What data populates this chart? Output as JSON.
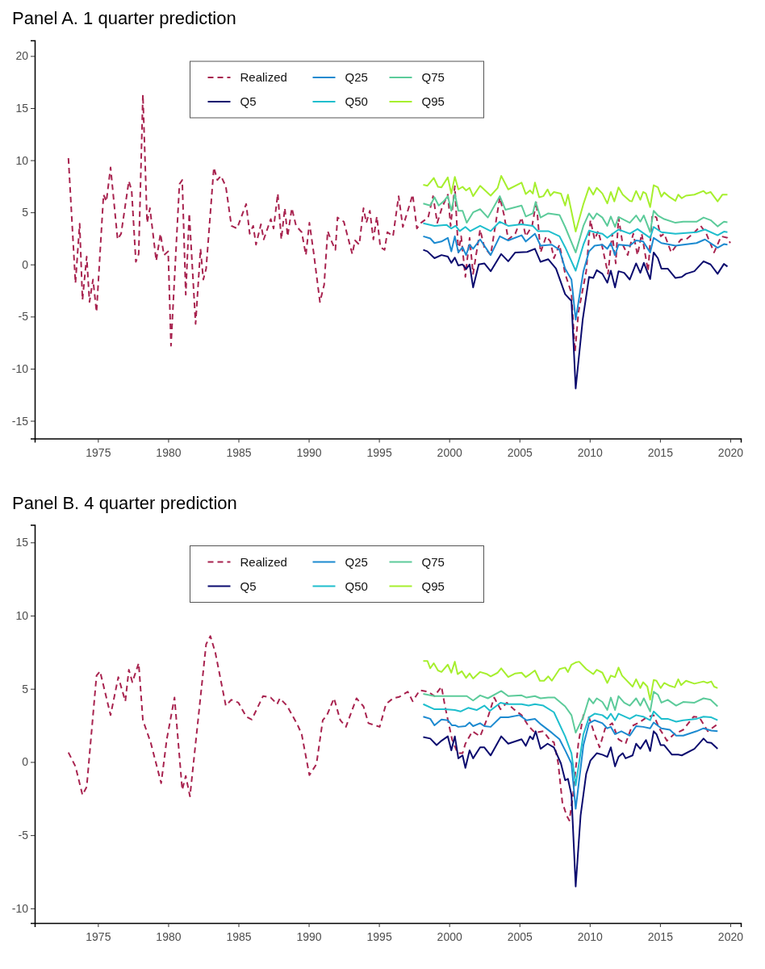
{
  "chart_data": [
    {
      "type": "line",
      "title": "Panel A. 1 quarter prediction",
      "xlim": [
        1970.5,
        2020.75
      ],
      "xticks": [
        1975,
        1980,
        1985,
        1990,
        1995,
        2000,
        2005,
        2010,
        2015,
        2020
      ],
      "ylim": [
        -16.7,
        21.5
      ],
      "yticks": [
        -15,
        -10,
        -5,
        0,
        5,
        10,
        15,
        20
      ],
      "grid": false,
      "legend": "top",
      "series": [
        {
          "name": "Realized",
          "color": "#a8234f",
          "line_style": "dashed",
          "x": [
            1972.9,
            1973.4,
            1973.7,
            1973.9,
            1974.2,
            1974.4,
            1974.65,
            1974.9,
            1975.4,
            1975.6,
            1975.9,
            1976.4,
            1976.65,
            1977.2,
            1977.4,
            1977.7,
            1977.9,
            1978.2,
            1978.5,
            1978.7,
            1979.15,
            1979.45,
            1979.7,
            1980.0,
            1980.2,
            1980.8,
            1981.0,
            1981.25,
            1981.5,
            1981.95,
            1982.3,
            1982.5,
            1982.7,
            1983.25,
            1983.5,
            1983.75,
            1984.1,
            1984.5,
            1984.9,
            1985.55,
            1985.8,
            1986.05,
            1986.25,
            1986.6,
            1986.8,
            1987.3,
            1987.5,
            1987.8,
            1988.05,
            1988.3,
            1988.5,
            1988.8,
            1989.1,
            1989.5,
            1989.8,
            1990.05,
            1990.35,
            1990.8,
            1991.1,
            1991.35,
            1991.6,
            1991.9,
            1992.05,
            1992.5,
            1993.1,
            1993.3,
            1993.6,
            1993.9,
            1994.1,
            1994.35,
            1994.6,
            1994.85,
            1995.1,
            1995.4,
            1995.6,
            1996.0,
            1996.4,
            1996.7,
            1997.4,
            1997.7,
            1998.0,
            1998.5,
            1998.85,
            1999.15,
            1999.5,
            1999.9,
            2000.1,
            2000.4,
            2000.65,
            2000.85,
            2001.15,
            2001.45,
            2001.7,
            2002.2,
            2002.5,
            2002.95,
            2003.6,
            2003.9,
            2004.2,
            2004.7,
            2005.15,
            2005.45,
            2005.9,
            2006.2,
            2006.5,
            2006.9,
            2007.2,
            2007.45,
            2007.85,
            2008.25,
            2008.7,
            2008.95,
            2009.2,
            2009.75,
            2010.05,
            2010.35,
            2010.6,
            2010.9,
            2011.3,
            2011.6,
            2011.85,
            2012.05,
            2012.35,
            2012.7,
            2013.1,
            2013.4,
            2013.7,
            2014.15,
            2014.45,
            2014.75,
            2015.05,
            2015.3,
            2015.8,
            2016.2,
            2016.5,
            2016.85,
            2017.35,
            2017.9,
            2018.3,
            2018.85,
            2019.35,
            2019.8,
            2020.0
          ],
          "values": [
            10.2,
            -1.8,
            3.9,
            -3.4,
            0.75,
            -3.6,
            -1.45,
            -4.55,
            6.7,
            6.05,
            9.3,
            2.4,
            2.95,
            8.0,
            7.1,
            0.25,
            1.0,
            16.3,
            4.0,
            5.4,
            0.35,
            2.95,
            0.9,
            1.25,
            -7.8,
            7.7,
            8.1,
            -2.9,
            4.9,
            -5.7,
            1.5,
            -1.45,
            -0.4,
            9.3,
            8.1,
            8.5,
            7.5,
            3.7,
            3.45,
            5.8,
            2.95,
            3.7,
            1.9,
            3.85,
            2.4,
            4.35,
            3.45,
            6.8,
            2.4,
            5.4,
            2.7,
            5.4,
            3.7,
            3.1,
            0.9,
            4.0,
            1.15,
            -3.6,
            -1.95,
            3.2,
            2.3,
            1.4,
            4.5,
            4.1,
            1.0,
            2.3,
            1.9,
            5.4,
            4.0,
            5.15,
            2.4,
            4.6,
            1.65,
            1.4,
            3.1,
            2.7,
            6.55,
            3.6,
            6.7,
            3.45,
            4.0,
            4.5,
            6.55,
            4.0,
            5.5,
            6.7,
            3.7,
            7.5,
            1.15,
            2.7,
            -1.2,
            2.55,
            -0.9,
            3.35,
            1.65,
            0.9,
            6.45,
            4.75,
            2.4,
            2.95,
            4.5,
            2.7,
            3.7,
            6.05,
            1.15,
            2.7,
            2.2,
            0.6,
            1.9,
            -0.9,
            -2.75,
            -8.4,
            -4.55,
            -0.65,
            4.25,
            2.4,
            3.2,
            1.65,
            -0.9,
            2.95,
            0.1,
            4.5,
            1.9,
            0.9,
            2.95,
            0.9,
            2.95,
            -0.65,
            4.75,
            4.5,
            2.7,
            2.95,
            1.15,
            1.9,
            2.4,
            2.4,
            2.95,
            3.7,
            2.95,
            1.15,
            2.7,
            2.55,
            2.05
          ]
        },
        {
          "name": "Q5",
          "color": "#0a0a6e",
          "line_style": "solid",
          "x": [
            1998.15,
            1998.45,
            1998.95,
            1999.45,
            1999.9,
            2000.15,
            2000.4,
            2000.65,
            2000.95,
            2001.2,
            2001.45,
            2001.7,
            2002.1,
            2002.5,
            2002.95,
            2003.7,
            2004.2,
            2004.7,
            2005.55,
            2006.1,
            2006.5,
            2007.05,
            2007.6,
            2008.25,
            2008.7,
            2009.0,
            2009.5,
            2009.95,
            2010.25,
            2010.5,
            2010.9,
            2011.25,
            2011.5,
            2011.8,
            2012.05,
            2012.45,
            2012.85,
            2013.3,
            2013.6,
            2013.85,
            2014.3,
            2014.55,
            2014.85,
            2015.1,
            2015.55,
            2016.1,
            2016.55,
            2016.85,
            2017.45,
            2018.1,
            2018.6,
            2019.1,
            2019.55,
            2019.8
          ],
          "values": [
            1.4,
            1.25,
            0.6,
            0.9,
            0.75,
            0.15,
            0.65,
            -0.1,
            0.0,
            -0.45,
            0.0,
            -2.2,
            0.0,
            0.1,
            -0.65,
            1.0,
            0.3,
            1.15,
            1.2,
            1.5,
            0.25,
            0.5,
            -0.4,
            -2.85,
            -3.5,
            -11.9,
            -5.3,
            -1.2,
            -1.3,
            -0.55,
            -0.9,
            -1.75,
            -0.6,
            -2.2,
            -0.65,
            -0.8,
            -1.45,
            0.1,
            -0.8,
            0.15,
            -1.4,
            1.15,
            0.6,
            -0.4,
            -0.4,
            -1.3,
            -1.2,
            -0.9,
            -0.65,
            0.3,
            0.0,
            -0.9,
            0.05,
            -0.2
          ]
        },
        {
          "name": "Q25",
          "color": "#1c8ad0",
          "line_style": "solid",
          "x": [
            1998.15,
            1998.65,
            1998.95,
            1999.45,
            1999.9,
            2000.15,
            2000.4,
            2000.65,
            2000.95,
            2001.2,
            2001.45,
            2001.7,
            2002.2,
            2002.95,
            2003.6,
            2004.2,
            2005.15,
            2005.45,
            2006.1,
            2006.5,
            2007.3,
            2007.85,
            2008.25,
            2008.7,
            2009.0,
            2009.55,
            2009.95,
            2010.35,
            2010.9,
            2011.25,
            2011.5,
            2011.8,
            2012.05,
            2012.85,
            2013.3,
            2013.8,
            2014.3,
            2014.55,
            2015.1,
            2016.1,
            2017.6,
            2018.2,
            2019.1,
            2019.55,
            2019.8
          ],
          "values": [
            2.7,
            2.5,
            2.05,
            2.2,
            2.55,
            1.25,
            2.7,
            1.15,
            1.65,
            0.9,
            1.9,
            1.5,
            2.4,
            0.9,
            2.7,
            2.3,
            2.8,
            2.2,
            2.95,
            1.8,
            1.9,
            1.4,
            -0.4,
            -1.45,
            -5.3,
            -0.65,
            1.25,
            1.8,
            1.9,
            1.5,
            2.05,
            0.9,
            1.9,
            1.8,
            2.3,
            2.2,
            1.15,
            2.55,
            2.05,
            1.8,
            2.05,
            2.4,
            1.6,
            1.95,
            1.9
          ]
        },
        {
          "name": "Q50",
          "color": "#1fbecd",
          "line_style": "solid",
          "x": [
            1998.15,
            1998.95,
            1999.8,
            2000.15,
            2000.45,
            2000.75,
            2001.15,
            2001.5,
            2002.2,
            2002.95,
            2003.6,
            2004.2,
            2005.15,
            2005.95,
            2006.3,
            2007.05,
            2007.85,
            2008.25,
            2009.0,
            2009.55,
            2009.95,
            2010.35,
            2010.9,
            2011.25,
            2012.05,
            2012.85,
            2013.4,
            2014.3,
            2014.55,
            2015.1,
            2016.1,
            2017.6,
            2018.2,
            2019.1,
            2019.55,
            2019.8
          ],
          "values": [
            3.95,
            3.7,
            3.8,
            3.45,
            3.7,
            3.2,
            3.6,
            3.2,
            3.7,
            3.2,
            4.1,
            3.7,
            3.85,
            3.7,
            3.2,
            3.2,
            2.7,
            1.65,
            -0.6,
            1.9,
            3.25,
            3.1,
            2.95,
            2.55,
            3.35,
            2.95,
            3.4,
            2.55,
            3.6,
            3.1,
            2.95,
            3.1,
            3.35,
            2.8,
            3.15,
            3.1
          ]
        },
        {
          "name": "Q75",
          "color": "#5ccb9a",
          "line_style": "solid",
          "x": [
            1998.15,
            1998.65,
            1998.95,
            1999.25,
            1999.6,
            1999.9,
            2000.15,
            2000.4,
            2000.65,
            2000.95,
            2001.25,
            2001.7,
            2002.2,
            2002.75,
            2003.6,
            2004.0,
            2005.15,
            2005.45,
            2005.95,
            2006.15,
            2006.5,
            2007.05,
            2007.85,
            2008.25,
            2009.0,
            2009.55,
            2009.95,
            2010.25,
            2010.5,
            2010.9,
            2011.25,
            2011.5,
            2011.8,
            2012.05,
            2012.35,
            2012.85,
            2013.3,
            2013.6,
            2013.85,
            2014.3,
            2014.55,
            2014.85,
            2015.3,
            2016.1,
            2016.65,
            2017.6,
            2018.1,
            2018.6,
            2019.1,
            2019.55,
            2019.8
          ],
          "values": [
            5.85,
            5.65,
            6.45,
            5.65,
            6.05,
            6.55,
            5.15,
            6.75,
            5.15,
            5.15,
            4.0,
            5.0,
            5.3,
            4.5,
            6.55,
            5.25,
            5.65,
            4.6,
            4.9,
            6.0,
            4.5,
            4.9,
            4.75,
            3.6,
            1.15,
            3.7,
            4.9,
            4.35,
            4.9,
            4.5,
            3.7,
            4.6,
            3.6,
            4.55,
            4.35,
            4.0,
            4.7,
            4.1,
            4.7,
            3.1,
            5.15,
            4.7,
            4.35,
            4.0,
            4.1,
            4.1,
            4.5,
            4.25,
            3.65,
            4.1,
            4.05
          ]
        },
        {
          "name": "Q95",
          "color": "#a6ef2e",
          "line_style": "solid",
          "x": [
            1998.15,
            1998.45,
            1998.9,
            1999.2,
            1999.45,
            1999.9,
            2000.15,
            2000.4,
            2000.65,
            2000.95,
            2001.2,
            2001.45,
            2001.7,
            2002.2,
            2002.95,
            2003.45,
            2003.7,
            2004.2,
            2005.15,
            2005.45,
            2005.75,
            2005.95,
            2006.1,
            2006.4,
            2006.7,
            2007.0,
            2007.2,
            2007.45,
            2007.95,
            2008.25,
            2008.45,
            2009.0,
            2009.55,
            2009.95,
            2010.25,
            2010.5,
            2010.9,
            2011.25,
            2011.5,
            2011.75,
            2012.05,
            2012.35,
            2012.85,
            2013.0,
            2013.3,
            2013.6,
            2013.8,
            2014.0,
            2014.3,
            2014.55,
            2014.85,
            2015.1,
            2015.3,
            2015.7,
            2016.1,
            2016.3,
            2016.55,
            2016.85,
            2017.45,
            2018.1,
            2018.3,
            2018.6,
            2019.1,
            2019.45,
            2019.8
          ],
          "values": [
            7.65,
            7.55,
            8.3,
            7.45,
            7.4,
            8.35,
            6.8,
            8.4,
            7.2,
            7.45,
            7.1,
            7.35,
            6.55,
            7.55,
            6.6,
            7.35,
            8.5,
            7.2,
            7.85,
            6.75,
            7.1,
            6.8,
            7.85,
            6.45,
            6.55,
            7.2,
            6.6,
            6.95,
            6.8,
            5.65,
            6.7,
            3.15,
            5.8,
            7.4,
            6.7,
            7.35,
            6.8,
            5.85,
            6.95,
            6.05,
            7.4,
            6.7,
            6.1,
            6.05,
            7.05,
            6.2,
            6.95,
            6.8,
            5.5,
            7.6,
            7.4,
            6.5,
            6.9,
            6.45,
            6.1,
            6.7,
            6.35,
            6.6,
            6.7,
            7.05,
            6.8,
            6.95,
            6.05,
            6.7,
            6.7
          ]
        }
      ]
    },
    {
      "type": "line",
      "title": "Panel B. 4 quarter prediction",
      "xlim": [
        1970.5,
        2020.75
      ],
      "xticks": [
        1975,
        1980,
        1985,
        1990,
        1995,
        2000,
        2005,
        2010,
        2015,
        2020
      ],
      "ylim": [
        -11,
        16.2
      ],
      "yticks": [
        -10,
        -5,
        0,
        5,
        10,
        15
      ],
      "grid": false,
      "legend": "top",
      "series": [
        {
          "name": "Realized",
          "color": "#a8234f",
          "line_style": "dashed",
          "x": [
            1972.9,
            1973.4,
            1973.9,
            1974.2,
            1974.9,
            1975.15,
            1975.9,
            1976.45,
            1976.95,
            1977.2,
            1977.45,
            1977.9,
            1978.2,
            1978.75,
            1979.5,
            1979.9,
            1980.45,
            1981.0,
            1981.25,
            1981.55,
            1982.7,
            1983.0,
            1983.35,
            1984.1,
            1984.5,
            1985.0,
            1985.55,
            1985.95,
            1986.75,
            1987.3,
            1987.75,
            1987.95,
            1988.45,
            1989.2,
            1989.5,
            1990.05,
            1990.55,
            1991.0,
            1991.3,
            1991.8,
            1992.25,
            1992.65,
            1993.4,
            1993.9,
            1994.25,
            1995.05,
            1995.5,
            1996.0,
            1996.45,
            1997.05,
            1997.4,
            1997.9,
            1998.5,
            1998.95,
            1999.45,
            1999.7,
            2000.2,
            2000.6,
            2000.95,
            2001.15,
            2001.65,
            2002.2,
            2002.8,
            2003.2,
            2003.65,
            2004.1,
            2004.6,
            2005.15,
            2005.65,
            2006.1,
            2006.7,
            2007.2,
            2007.45,
            2007.75,
            2008.05,
            2008.35,
            2008.55,
            2008.8,
            2009.2,
            2009.55,
            2009.95,
            2010.35,
            2010.7,
            2011.1,
            2011.6,
            2012.05,
            2012.55,
            2013.0,
            2013.6,
            2014.05,
            2014.55,
            2014.95,
            2015.5,
            2016.0,
            2016.65,
            2017.4,
            2017.8,
            2018.4,
            2019.05
          ],
          "values": [
            0.65,
            -0.3,
            -2.25,
            -1.7,
            5.9,
            6.2,
            3.2,
            5.8,
            4.15,
            6.3,
            5.45,
            6.75,
            2.85,
            1.35,
            -1.45,
            1.55,
            4.4,
            -1.9,
            -0.95,
            -2.35,
            8.05,
            8.6,
            7.5,
            3.85,
            4.25,
            4.05,
            3.1,
            2.9,
            4.5,
            4.4,
            3.95,
            4.35,
            3.85,
            2.55,
            1.9,
            -0.9,
            -0.15,
            2.85,
            3.2,
            4.35,
            2.85,
            2.4,
            4.35,
            3.8,
            2.65,
            2.4,
            3.95,
            4.35,
            4.45,
            4.8,
            4.15,
            4.9,
            4.8,
            4.5,
            5.15,
            3.8,
            1.55,
            0.6,
            0.6,
            1.25,
            2.1,
            1.75,
            3.2,
            4.4,
            3.6,
            4.05,
            3.6,
            3.2,
            2.45,
            2.0,
            2.1,
            1.45,
            1.35,
            -0.05,
            -2.75,
            -3.65,
            -4.0,
            -2.35,
            1.35,
            3.2,
            3.05,
            1.9,
            1.0,
            2.3,
            2.65,
            1.55,
            1.25,
            2.45,
            2.75,
            3.05,
            3.2,
            2.3,
            1.45,
            1.9,
            2.2,
            3.1,
            3.05,
            2.1,
            2.55
          ]
        },
        {
          "name": "Q5",
          "color": "#0a0a6e",
          "line_style": "solid",
          "x": [
            1998.15,
            1998.65,
            1999.1,
            1999.45,
            1999.9,
            2000.15,
            2000.4,
            2000.65,
            2000.95,
            2001.15,
            2001.45,
            2001.7,
            2002.2,
            2002.5,
            2002.95,
            2003.7,
            2004.2,
            2005.15,
            2005.45,
            2005.75,
            2005.95,
            2006.15,
            2006.5,
            2007.0,
            2007.45,
            2007.95,
            2008.25,
            2008.45,
            2008.7,
            2009.0,
            2009.35,
            2009.75,
            2010.05,
            2010.5,
            2010.9,
            2011.25,
            2011.5,
            2011.8,
            2012.05,
            2012.35,
            2012.55,
            2013.05,
            2013.3,
            2013.6,
            2014.0,
            2014.3,
            2014.55,
            2014.75,
            2015.05,
            2015.3,
            2015.85,
            2016.3,
            2016.55,
            2017.45,
            2018.1,
            2018.35,
            2018.65,
            2019.1
          ],
          "values": [
            1.7,
            1.6,
            1.15,
            1.45,
            1.75,
            0.8,
            1.75,
            0.25,
            0.45,
            -0.4,
            0.8,
            0.25,
            1.0,
            1.0,
            0.45,
            1.75,
            1.25,
            1.55,
            1.1,
            1.75,
            1.55,
            2.1,
            0.9,
            1.25,
            1.0,
            -0.1,
            -1.25,
            -1.15,
            -2.25,
            -8.5,
            -3.65,
            -0.8,
            0.1,
            0.6,
            0.5,
            0.35,
            1.0,
            -0.3,
            0.35,
            0.6,
            0.25,
            0.45,
            1.25,
            0.9,
            1.5,
            0.75,
            2.1,
            1.9,
            1.15,
            1.15,
            0.5,
            0.5,
            0.45,
            0.9,
            1.6,
            1.35,
            1.3,
            0.9
          ]
        },
        {
          "name": "Q25",
          "color": "#1c8ad0",
          "line_style": "solid",
          "x": [
            1998.15,
            1998.65,
            1998.95,
            1999.45,
            1999.9,
            2000.2,
            2000.45,
            2000.65,
            2001.15,
            2001.45,
            2001.7,
            2002.2,
            2002.5,
            2002.95,
            2003.65,
            2004.2,
            2005.0,
            2005.5,
            2006.1,
            2006.55,
            2007.3,
            2007.85,
            2008.25,
            2008.7,
            2009.0,
            2009.55,
            2009.95,
            2010.35,
            2010.9,
            2011.25,
            2011.5,
            2011.8,
            2012.25,
            2012.85,
            2013.3,
            2013.8,
            2014.3,
            2014.55,
            2015.1,
            2015.7,
            2016.15,
            2016.65,
            2017.6,
            2018.1,
            2018.65,
            2019.1
          ],
          "values": [
            3.1,
            2.95,
            2.5,
            2.9,
            2.85,
            2.5,
            2.5,
            2.4,
            2.45,
            2.7,
            2.45,
            2.65,
            2.45,
            2.4,
            3.05,
            3.05,
            3.2,
            2.85,
            2.95,
            2.55,
            2.0,
            1.55,
            0.8,
            -0.1,
            -3.2,
            1.15,
            2.65,
            2.85,
            2.65,
            2.3,
            2.4,
            1.9,
            2.1,
            1.8,
            2.45,
            2.4,
            2.3,
            2.7,
            2.3,
            2.2,
            1.8,
            1.8,
            2.1,
            2.3,
            2.15,
            2.1
          ]
        },
        {
          "name": "Q50",
          "color": "#1fbecd",
          "line_style": "solid",
          "x": [
            1998.15,
            1998.95,
            1999.7,
            2000.4,
            2000.8,
            2001.35,
            2001.95,
            2002.5,
            2002.9,
            2003.65,
            2004.1,
            2005.15,
            2005.65,
            2006.1,
            2006.7,
            2007.45,
            2008.25,
            2008.7,
            2009.0,
            2009.55,
            2009.95,
            2010.35,
            2010.9,
            2011.25,
            2011.5,
            2011.8,
            2012.05,
            2012.85,
            2013.3,
            2013.8,
            2014.3,
            2014.55,
            2015.1,
            2015.55,
            2016.15,
            2016.65,
            2017.6,
            2018.1,
            2018.65,
            2019.1
          ],
          "values": [
            3.95,
            3.6,
            3.6,
            3.55,
            3.45,
            3.7,
            3.55,
            3.85,
            3.5,
            4.05,
            3.95,
            3.95,
            3.85,
            3.95,
            3.85,
            3.4,
            1.75,
            0.6,
            -1.6,
            1.9,
            3.05,
            3.3,
            3.2,
            2.95,
            3.3,
            2.85,
            3.3,
            2.95,
            3.2,
            3.1,
            2.85,
            3.45,
            2.95,
            2.95,
            2.75,
            2.85,
            2.95,
            3.1,
            3.05,
            2.85
          ]
        },
        {
          "name": "Q75",
          "color": "#5ccb9a",
          "line_style": "solid",
          "x": [
            1998.15,
            1998.95,
            1999.7,
            2000.8,
            2001.25,
            2001.7,
            2002.2,
            2002.75,
            2003.7,
            2004.2,
            2005.15,
            2005.5,
            2006.1,
            2006.5,
            2007.05,
            2007.5,
            2008.25,
            2008.7,
            2009.0,
            2009.55,
            2009.95,
            2010.25,
            2010.5,
            2010.9,
            2011.25,
            2011.5,
            2011.8,
            2012.05,
            2012.45,
            2012.85,
            2013.3,
            2013.6,
            2013.85,
            2014.3,
            2014.55,
            2014.85,
            2015.1,
            2015.55,
            2016.15,
            2016.65,
            2017.45,
            2018.1,
            2018.6,
            2019.1
          ],
          "values": [
            4.65,
            4.5,
            4.5,
            4.5,
            4.5,
            4.2,
            4.55,
            4.35,
            4.85,
            4.5,
            4.55,
            4.4,
            4.5,
            4.35,
            4.4,
            4.4,
            3.8,
            3.2,
            2.0,
            3.1,
            4.35,
            4.0,
            4.35,
            4.1,
            3.55,
            4.4,
            3.55,
            4.5,
            4.05,
            3.85,
            4.35,
            3.85,
            4.35,
            3.45,
            4.8,
            4.6,
            4.05,
            4.25,
            3.85,
            4.1,
            4.05,
            4.35,
            4.25,
            3.8
          ]
        },
        {
          "name": "Q95",
          "color": "#a6ef2e",
          "line_style": "solid",
          "x": [
            1998.15,
            1998.45,
            1998.65,
            1998.9,
            1999.2,
            1999.45,
            1999.9,
            2000.15,
            2000.4,
            2000.6,
            2000.9,
            2001.2,
            2001.45,
            2001.7,
            2002.2,
            2002.7,
            2002.95,
            2003.45,
            2003.7,
            2004.2,
            2004.7,
            2005.15,
            2005.45,
            2005.75,
            2006.1,
            2006.45,
            2006.75,
            2007.05,
            2007.3,
            2007.85,
            2008.25,
            2008.45,
            2008.7,
            2009.0,
            2009.25,
            2009.75,
            2010.25,
            2010.5,
            2010.9,
            2011.25,
            2011.5,
            2011.8,
            2012.05,
            2012.3,
            2013.05,
            2013.3,
            2013.6,
            2013.8,
            2014.1,
            2014.3,
            2014.55,
            2014.75,
            2015.05,
            2015.3,
            2015.7,
            2016.05,
            2016.3,
            2016.5,
            2016.85,
            2017.45,
            2018.1,
            2018.35,
            2018.65,
            2018.85,
            2019.1
          ],
          "values": [
            6.9,
            6.9,
            6.4,
            6.75,
            6.25,
            6.15,
            6.65,
            6.1,
            6.85,
            6.0,
            6.2,
            5.75,
            6.05,
            5.7,
            6.15,
            6.0,
            5.85,
            6.1,
            6.4,
            5.8,
            6.05,
            6.1,
            5.8,
            6.0,
            6.25,
            5.55,
            5.55,
            5.85,
            5.55,
            6.35,
            6.45,
            6.15,
            6.65,
            6.8,
            6.85,
            6.35,
            6.0,
            6.3,
            6.1,
            5.4,
            5.9,
            5.8,
            6.45,
            5.9,
            5.15,
            5.65,
            5.05,
            5.45,
            5.15,
            4.25,
            5.6,
            5.55,
            5.05,
            5.4,
            5.2,
            5.1,
            5.65,
            5.25,
            5.55,
            5.35,
            5.5,
            5.4,
            5.5,
            5.15,
            5.05
          ]
        }
      ]
    }
  ]
}
